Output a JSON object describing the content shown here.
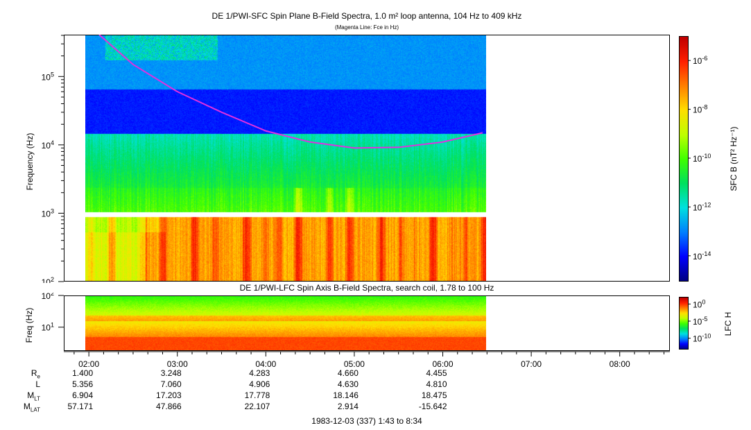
{
  "title_main": "DE 1/PWI-SFC  Spin Plane B-Field Spectra, 1.0 m² loop antenna, 104 Hz to 409 kHz",
  "title_sub": "(Magenta Line: Fce in Hz)",
  "title_lfc": "DE 1/PWI-LFC  Spin Axis B-Field Spectra, search coil, 1.78 to 100 Hz",
  "footer": "1983-12-03 (337) 1:43 to 8:34",
  "colors": {
    "fce_line": "#e030e0",
    "colormap": [
      "#000080",
      "#0000ff",
      "#0080ff",
      "#00e0e0",
      "#00e060",
      "#40ff00",
      "#c0ff00",
      "#ffe000",
      "#ff8000",
      "#ff2000",
      "#c00000"
    ]
  },
  "chart_data": [
    {
      "type": "heatmap",
      "title": "DE 1/PWI-SFC  Spin Plane B-Field Spectra, 1.0 m² loop antenna, 104 Hz to 409 kHz",
      "ylabel": "Frequency (Hz)",
      "yscale": "log",
      "ylim": [
        100,
        409000
      ],
      "y_ticks": [
        "10^2",
        "10^3",
        "10^4",
        "10^5"
      ],
      "x_ticks": [
        "02:00",
        "03:00",
        "04:00",
        "05:00",
        "06:00",
        "07:00",
        "08:00"
      ],
      "x_range": [
        "01:43",
        "08:34"
      ],
      "data_extent": [
        "01:57",
        "06:27"
      ],
      "colorbar": {
        "label": "SFC B (nT² Hz⁻¹)",
        "scale": "log",
        "ticks": [
          "10^-6",
          "10^-8",
          "10^-10",
          "10^-12",
          "10^-14"
        ]
      },
      "fce_curve_hz": [
        {
          "t": "02:07",
          "f": 409000
        },
        {
          "t": "02:30",
          "f": 150000
        },
        {
          "t": "03:00",
          "f": 60000
        },
        {
          "t": "03:30",
          "f": 30000
        },
        {
          "t": "04:00",
          "f": 16000
        },
        {
          "t": "04:30",
          "f": 11000
        },
        {
          "t": "05:00",
          "f": 9000
        },
        {
          "t": "05:30",
          "f": 9200
        },
        {
          "t": "06:00",
          "f": 11000
        },
        {
          "t": "06:27",
          "f": 15000
        }
      ]
    },
    {
      "type": "heatmap",
      "title": "DE 1/PWI-LFC  Spin Axis B-Field Spectra, search coil, 1.78 to 100 Hz",
      "ylabel": "Freq (Hz)",
      "yscale": "log",
      "ylim": [
        1.78,
        100
      ],
      "y_ticks": [
        "10^1",
        "10^2"
      ],
      "colorbar": {
        "label": "LFC H",
        "scale": "log",
        "ticks": [
          "10^0",
          "10^-5",
          "10^-10"
        ]
      }
    }
  ],
  "ephemeris": {
    "labels": [
      {
        "base": "R",
        "sub": "e"
      },
      {
        "base": "L",
        "sub": ""
      },
      {
        "base": "M",
        "sub": "LT"
      },
      {
        "base": "M",
        "sub": "LAT"
      }
    ],
    "columns": [
      [
        "1.400",
        "5.356",
        "6.904",
        "57.171"
      ],
      [
        "3.248",
        "7.060",
        "17.203",
        "47.866"
      ],
      [
        "4.283",
        "4.906",
        "17.778",
        "22.107"
      ],
      [
        "4.660",
        "4.630",
        "18.146",
        "2.914"
      ],
      [
        "4.455",
        "4.810",
        "18.475",
        "-15.642"
      ]
    ]
  }
}
